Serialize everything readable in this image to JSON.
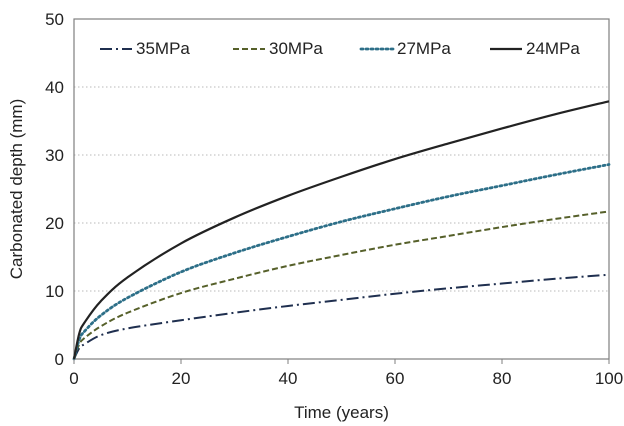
{
  "chart_data": {
    "type": "line",
    "title": "",
    "xlabel": "Time (years)",
    "ylabel": "Carbonated depth (mm)",
    "xlim": [
      0,
      100
    ],
    "ylim": [
      0,
      50
    ],
    "x_ticks": [
      0,
      20,
      40,
      60,
      80,
      100
    ],
    "y_ticks": [
      0,
      10,
      20,
      30,
      40,
      50
    ],
    "grid": "horizontal dotted",
    "legend_position": "top",
    "x": [
      0,
      1,
      2,
      5,
      10,
      20,
      30,
      40,
      50,
      60,
      70,
      80,
      90,
      100
    ],
    "series": [
      {
        "name": "35MPa",
        "color": "#1f2f4f",
        "dash": "dash-dot",
        "values": [
          0,
          1.6,
          2.2,
          3.5,
          4.5,
          5.7,
          6.8,
          7.8,
          8.7,
          9.6,
          10.4,
          11.1,
          11.8,
          12.4
        ]
      },
      {
        "name": "30MPa",
        "color": "#56602a",
        "dash": "dashed",
        "values": [
          0,
          2.2,
          3.1,
          4.8,
          6.8,
          9.7,
          11.8,
          13.7,
          15.3,
          16.8,
          18.1,
          19.4,
          20.6,
          21.7
        ]
      },
      {
        "name": "27MPa",
        "color": "#2d6f88",
        "dash": "dotted",
        "values": [
          0,
          2.9,
          4.1,
          6.4,
          9.0,
          12.8,
          15.6,
          18.0,
          20.2,
          22.1,
          23.9,
          25.5,
          27.1,
          28.6
        ]
      },
      {
        "name": "24MPa",
        "color": "#222222",
        "dash": "solid",
        "values": [
          0,
          3.8,
          5.4,
          8.5,
          12.0,
          17.0,
          20.8,
          24.0,
          26.8,
          29.4,
          31.7,
          33.9,
          36.0,
          37.9
        ]
      }
    ]
  },
  "legend": {
    "items": [
      "35MPa",
      "30MPa",
      "27MPa",
      "24MPa"
    ]
  }
}
